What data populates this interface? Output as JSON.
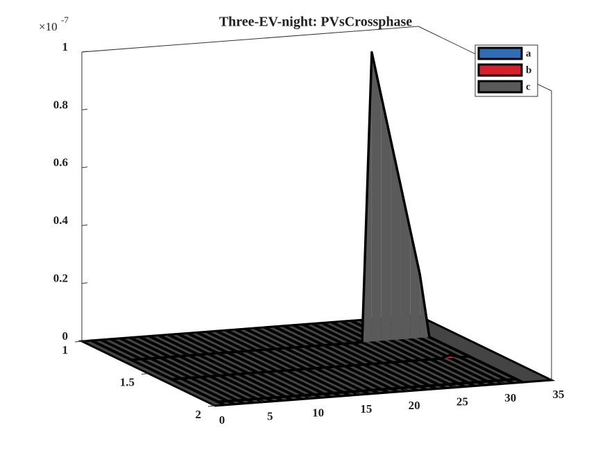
{
  "chart_data": {
    "type": "area3d",
    "title": "Three-EV-night: PVsCrossphase",
    "z_exponent_base": "×10",
    "z_exponent": "-7",
    "x": [
      1,
      2,
      3,
      4,
      5,
      6,
      7,
      8,
      9,
      10,
      11,
      12,
      13,
      14,
      15,
      16,
      17,
      18,
      19,
      20,
      21,
      22,
      23,
      24,
      25,
      26,
      27,
      28,
      29,
      30,
      31,
      32
    ],
    "series": [
      {
        "name": "a",
        "color": "#2f6db5",
        "values": [
          0,
          0,
          0,
          0,
          0,
          0,
          0,
          0,
          0,
          0,
          0,
          0,
          0,
          0,
          0,
          0,
          0,
          0,
          0,
          0,
          0,
          0,
          0,
          0,
          0,
          0,
          0,
          0,
          0,
          0,
          0,
          0
        ]
      },
      {
        "name": "b",
        "color": "#d7202b",
        "values": [
          0,
          0,
          0,
          0,
          0,
          0,
          0,
          0,
          0,
          0,
          0,
          0,
          0,
          0,
          0,
          0,
          0,
          0,
          0,
          0,
          0,
          0,
          0,
          0,
          0,
          0,
          0,
          0,
          0,
          0.01,
          0,
          0
        ]
      },
      {
        "name": "c",
        "color": "#5a5a5a",
        "values": [
          0,
          0,
          0,
          0,
          0,
          0,
          0,
          0,
          0,
          0,
          0,
          0,
          0,
          0,
          0,
          0,
          0,
          0,
          0,
          0,
          0,
          0,
          0,
          0,
          0,
          1,
          0.844,
          0.688,
          0.532,
          0.376,
          0.22,
          0
        ]
      }
    ],
    "xlim": [
      0,
      35
    ],
    "xticks": [
      0,
      5,
      10,
      15,
      20,
      25,
      30,
      35
    ],
    "ylim": [
      1,
      2
    ],
    "yticks": [
      1,
      1.5,
      2
    ],
    "zlim": [
      0,
      1
    ],
    "zticks": [
      0,
      0.2,
      0.4,
      0.6,
      0.8,
      1
    ],
    "legend": "top-right"
  }
}
